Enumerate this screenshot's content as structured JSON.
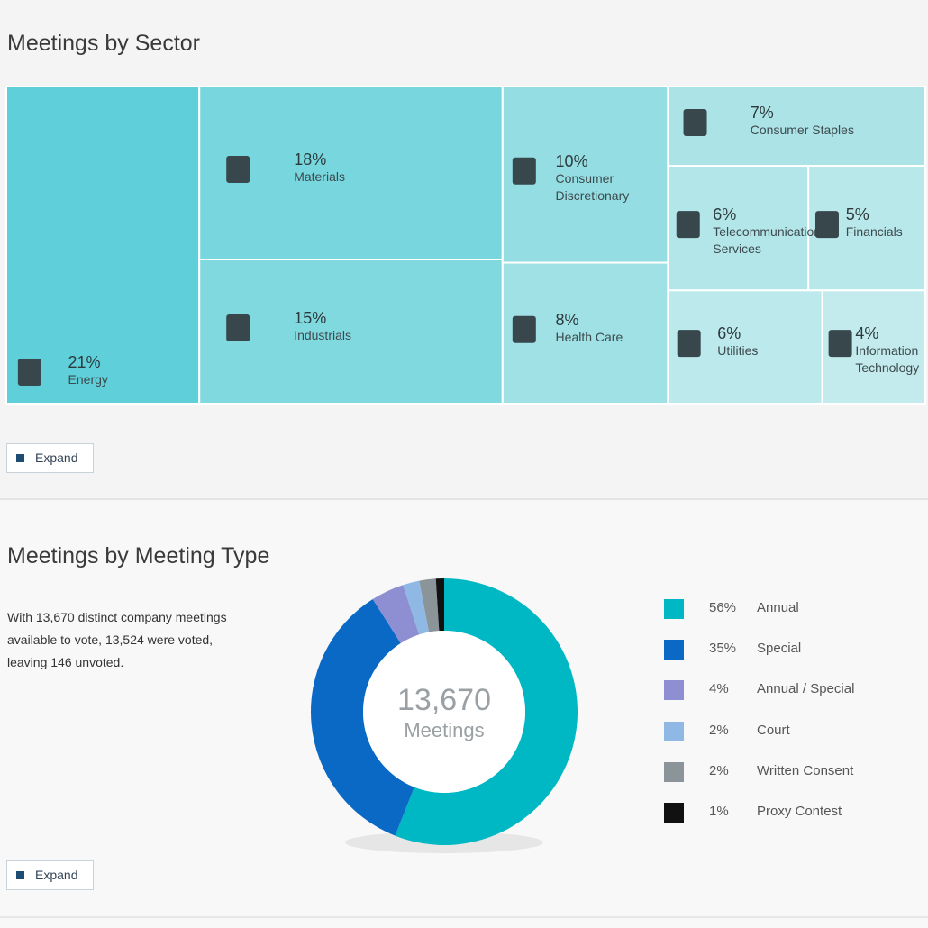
{
  "chart_data": [
    {
      "type": "treemap",
      "title": "Meetings by Sector",
      "categories": [
        "Energy",
        "Materials",
        "Industrials",
        "Consumer Discretionary",
        "Health Care",
        "Consumer Staples",
        "Telecommunication Services",
        "Financials",
        "Utilities",
        "Information Technology"
      ],
      "values": [
        21,
        18,
        15,
        10,
        8,
        7,
        6,
        5,
        6,
        4
      ],
      "value_labels": [
        "21%",
        "18%",
        "15%",
        "10%",
        "8%",
        "7%",
        "6%",
        "5%",
        "6%",
        "4%"
      ],
      "colors": [
        "#5fd0d9",
        "#78d7de",
        "#80d9df",
        "#94dee3",
        "#9fe1e5",
        "#abe3e7",
        "#b3e6e9",
        "#b9e8eb",
        "#bce9ec",
        "#c3ebee"
      ]
    },
    {
      "type": "donut",
      "title": "Meetings by Meeting Type",
      "center_value": "13,670",
      "center_label": "Meetings",
      "categories": [
        "Annual",
        "Special",
        "Annual / Special",
        "Court",
        "Written Consent",
        "Proxy Contest"
      ],
      "values": [
        56,
        35,
        4,
        2,
        2,
        1
      ],
      "value_labels": [
        "56%",
        "35%",
        "4%",
        "2%",
        "2%",
        "1%"
      ],
      "colors": [
        "#00b7c4",
        "#0b69c6",
        "#8e8fd2",
        "#8fb8e4",
        "#8b9599",
        "#111111"
      ]
    }
  ],
  "summary": "With 13,670 distinct company meetings available to vote, 13,524 were voted, leaving 146 unvoted.",
  "buttons": [
    "Expand",
    "Expand"
  ]
}
